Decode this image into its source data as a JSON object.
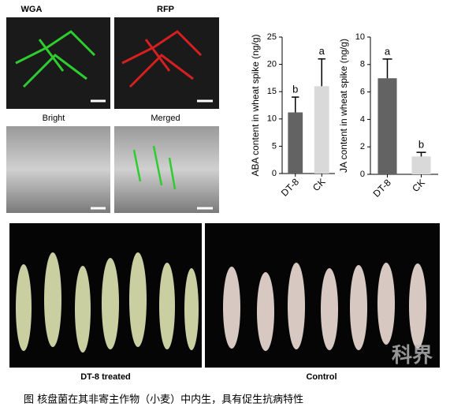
{
  "panels": {
    "micro": [
      "WGA",
      "RFP",
      "Bright",
      "Merged"
    ],
    "photos": [
      "DT-8  treated",
      "Control"
    ],
    "watermark": "科界"
  },
  "caption": "图 核盘菌在其非寄主作物（小麦）中内生，具有促生抗病特性",
  "chart_data": [
    {
      "type": "bar",
      "ylabel": "ABA content in wheat spike (ng/g)",
      "categories": [
        "DT-8",
        "CK"
      ],
      "values": [
        11.2,
        16
      ],
      "errors": [
        2.8,
        5
      ],
      "letters": [
        "b",
        "a"
      ],
      "colors": [
        "#636363",
        "#d9d9d9"
      ],
      "ylim": [
        0,
        25
      ],
      "yticks": [
        0,
        5,
        10,
        15,
        20,
        25
      ]
    },
    {
      "type": "bar",
      "ylabel": "JA content in wheat spike (ng/g)",
      "categories": [
        "DT-8",
        "CK"
      ],
      "values": [
        7.0,
        1.3
      ],
      "errors": [
        1.4,
        0.3
      ],
      "letters": [
        "a",
        "b"
      ],
      "colors": [
        "#636363",
        "#d9d9d9"
      ],
      "ylim": [
        0,
        10
      ],
      "yticks": [
        0,
        2,
        4,
        6,
        8,
        10
      ]
    }
  ]
}
